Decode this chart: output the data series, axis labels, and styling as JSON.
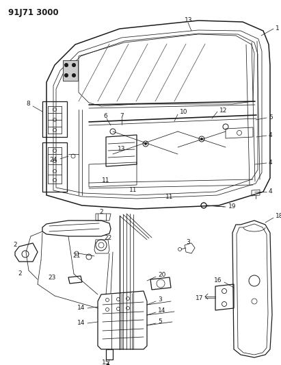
{
  "title": "91J71 3000",
  "bg_color": "#ffffff",
  "text_color": "#1a1a1a",
  "title_fontsize": 8.5,
  "label_fontsize": 6.5,
  "fig_width": 4.11,
  "fig_height": 5.33,
  "dpi": 100
}
